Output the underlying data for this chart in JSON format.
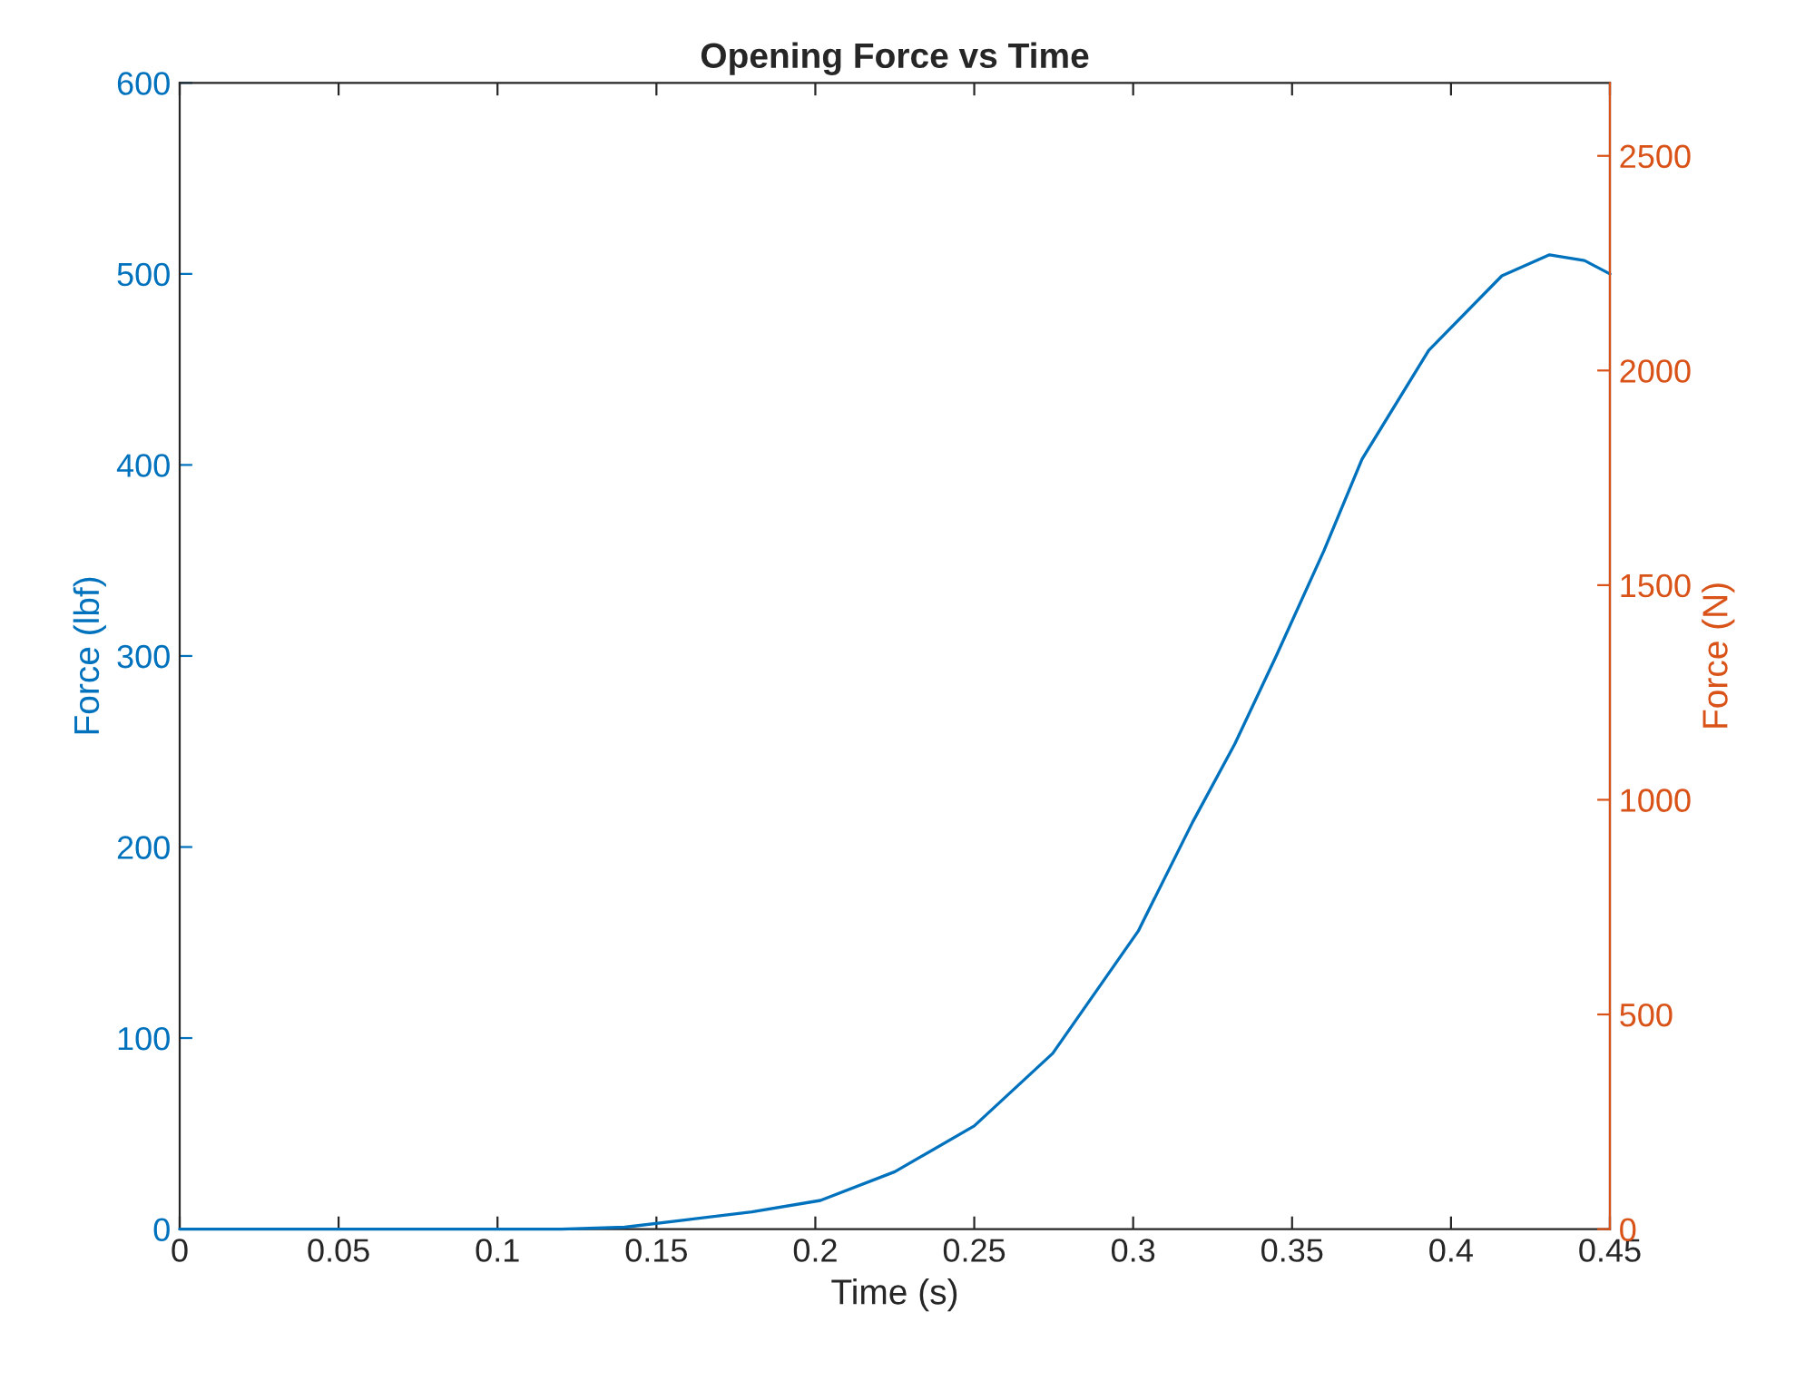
{
  "chart_data": {
    "type": "line",
    "title": "Opening Force vs Time",
    "xlabel": "Time (s)",
    "ylabel": "Force (lbf)",
    "y2label": "Force (N)",
    "x": [
      0,
      0.05,
      0.1,
      0.12,
      0.14,
      0.16,
      0.18,
      0.2016,
      0.225,
      0.25,
      0.2747,
      0.3016,
      0.3187,
      0.332,
      0.345,
      0.36,
      0.372,
      0.393,
      0.416,
      0.431,
      0.442,
      0.45
    ],
    "series": [
      {
        "color": "#0072bd",
        "values": [
          0,
          0,
          0,
          0,
          1,
          5,
          9,
          15,
          30,
          54,
          92,
          156,
          213,
          254,
          300,
          355,
          403,
          460,
          499,
          510,
          507,
          500
        ]
      }
    ],
    "xlim": [
      0,
      0.45
    ],
    "xticks": [
      0,
      0.05,
      0.1,
      0.15,
      0.2,
      0.25,
      0.3,
      0.35,
      0.4,
      0.45
    ],
    "ylim": [
      0,
      600
    ],
    "yticks": [
      0,
      100,
      200,
      300,
      400,
      500,
      600
    ],
    "y2lim": [
      0,
      2670
    ],
    "y2ticks": [
      0,
      500,
      1000,
      1500,
      2000,
      2500
    ],
    "grid": false,
    "legend": false,
    "marker": "none",
    "line_style": "solid"
  }
}
